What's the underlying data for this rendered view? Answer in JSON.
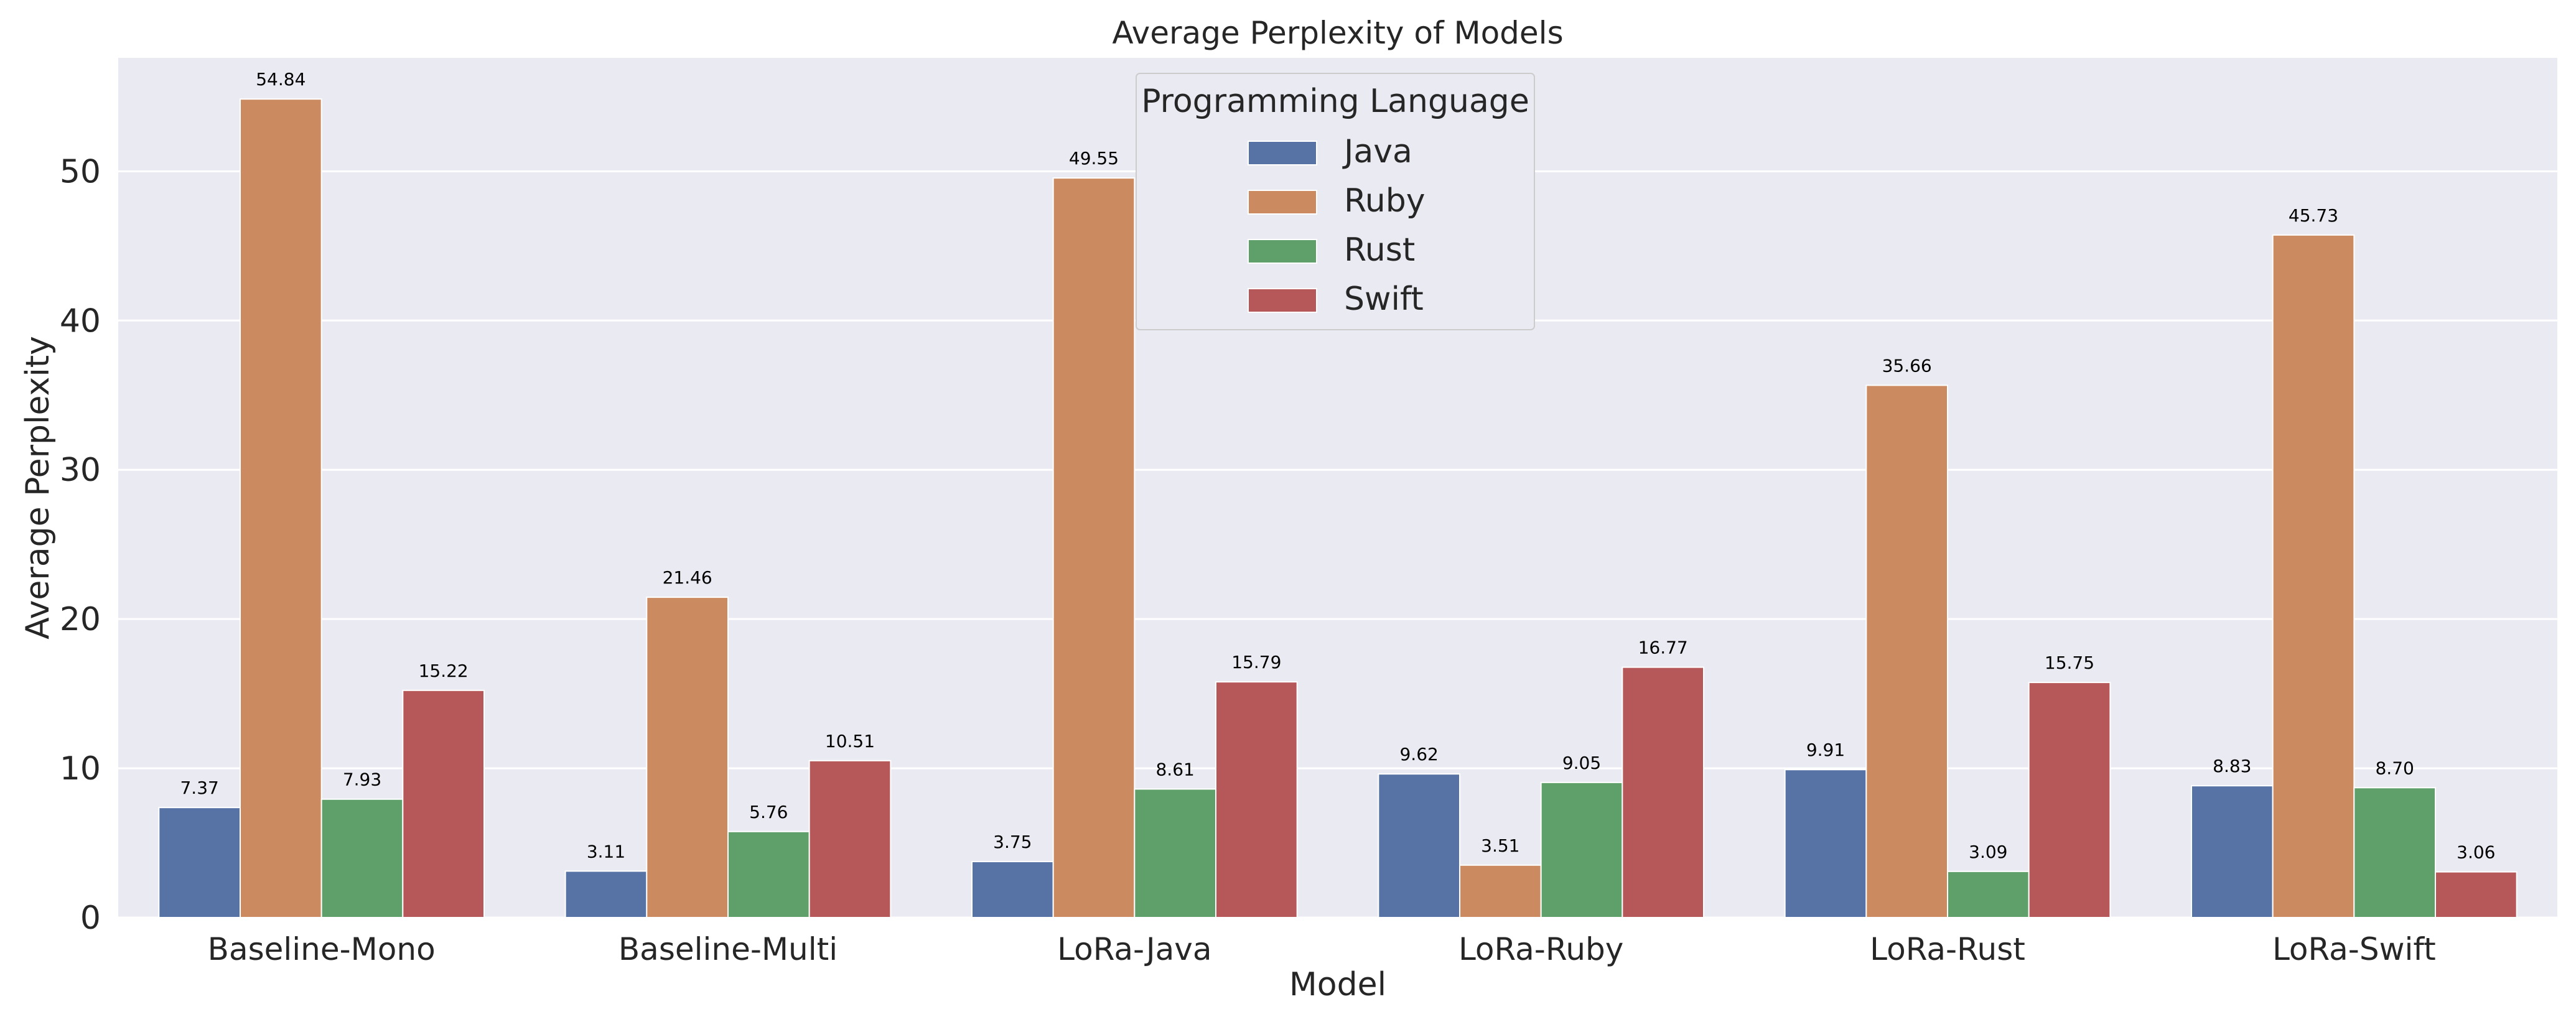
{
  "chart_data": {
    "type": "bar",
    "title": "Average Perplexity of Models",
    "xlabel": "Model",
    "ylabel": "Average Perplexity",
    "categories": [
      "Baseline-Mono",
      "Baseline-Multi",
      "LoRa-Java",
      "LoRa-Ruby",
      "LoRa-Rust",
      "LoRa-Swift"
    ],
    "series": [
      {
        "name": "Java",
        "color": "#5773a5",
        "values": [
          7.37,
          3.11,
          3.75,
          9.62,
          9.91,
          8.83
        ]
      },
      {
        "name": "Ruby",
        "color": "#cb8a60",
        "values": [
          54.84,
          21.46,
          49.55,
          3.51,
          35.66,
          45.73
        ]
      },
      {
        "name": "Rust",
        "color": "#5e9f6a",
        "values": [
          7.93,
          5.76,
          8.61,
          9.05,
          3.09,
          8.7
        ]
      },
      {
        "name": "Swift",
        "color": "#b6575a",
        "values": [
          15.22,
          10.51,
          15.79,
          16.77,
          15.75,
          3.06
        ]
      }
    ],
    "ylim": [
      0,
      57.6
    ],
    "yticks": [
      0,
      10,
      20,
      30,
      40,
      50
    ],
    "grid": true,
    "legend": {
      "title": "Programming Language",
      "placement": "upper-center"
    },
    "background_color": "#eaeaf2"
  }
}
